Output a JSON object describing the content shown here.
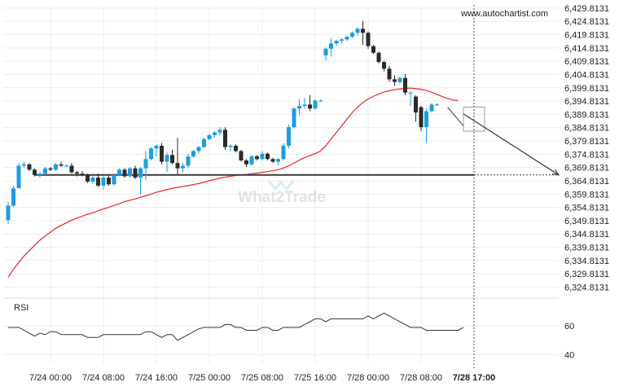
{
  "watermark": {
    "site": "www.autochartist.com",
    "brand": "What2Trade"
  },
  "colors": {
    "bull": "#1a9ee0",
    "bear": "#2b2b2b",
    "ma": "#e8242c",
    "support": "#3a3a3a",
    "arrow": "#3a3a3a",
    "rsi": "#333333",
    "grid": "#ececec",
    "axis_text": "#222222",
    "projection_fill": "#ffffff"
  },
  "chart_data": [
    {
      "type": "candlestick",
      "title": "",
      "ylim": [
        6322.5,
        6431.0
      ],
      "y_ticks": [
        6429.8131,
        6424.8131,
        6419.8131,
        6414.8131,
        6409.8131,
        6404.8131,
        6399.8131,
        6394.8131,
        6389.8131,
        6384.8131,
        6379.8131,
        6374.8131,
        6369.8131,
        6364.8131,
        6359.8131,
        6354.8131,
        6349.8131,
        6344.8131,
        6339.8131,
        6334.8131,
        6329.8131,
        6324.8131
      ],
      "y_tick_labels": [
        "6,429.8131",
        "6,424.8131",
        "6,419.8131",
        "6,414.8131",
        "6,409.8131",
        "6,404.8131",
        "6,399.8131",
        "6,394.8131",
        "6,389.8131",
        "6,384.8131",
        "6,379.8131",
        "6,374.8131",
        "6,369.8131",
        "6,364.8131",
        "6,359.8131",
        "6,354.8131",
        "6,349.8131",
        "6,344.8131",
        "6,339.8131",
        "6,334.8131",
        "6,329.8131",
        "6,324.8131"
      ],
      "x_tick_labels": [
        "7/24 00:00",
        "7/24 08:00",
        "7/24 16:00",
        "7/25 00:00",
        "7/25 08:00",
        "7/25 16:00",
        "7/28 00:00",
        "7/28 08:00",
        "7/28 17:00"
      ],
      "x_tick_bar_index": [
        8,
        18,
        28,
        38,
        48,
        58,
        68,
        78,
        88
      ],
      "now_bar_index": 88,
      "candles": [
        {
          "o": 6350.0,
          "h": 6357.0,
          "l": 6348.5,
          "c": 6355.5
        },
        {
          "o": 6355.5,
          "h": 6363.0,
          "l": 6355.0,
          "c": 6362.0
        },
        {
          "o": 6362.0,
          "h": 6371.5,
          "l": 6362.0,
          "c": 6370.5
        },
        {
          "o": 6370.5,
          "h": 6372.0,
          "l": 6369.5,
          "c": 6371.0
        },
        {
          "o": 6371.0,
          "h": 6371.5,
          "l": 6368.5,
          "c": 6369.0
        },
        {
          "o": 6369.0,
          "h": 6369.5,
          "l": 6366.5,
          "c": 6367.0
        },
        {
          "o": 6367.0,
          "h": 6368.0,
          "l": 6366.0,
          "c": 6367.5
        },
        {
          "o": 6367.5,
          "h": 6370.0,
          "l": 6367.0,
          "c": 6369.5
        },
        {
          "o": 6369.5,
          "h": 6370.0,
          "l": 6368.5,
          "c": 6369.0
        },
        {
          "o": 6369.0,
          "h": 6371.5,
          "l": 6368.5,
          "c": 6371.0
        },
        {
          "o": 6371.0,
          "h": 6372.0,
          "l": 6370.0,
          "c": 6370.5
        },
        {
          "o": 6370.5,
          "h": 6371.0,
          "l": 6370.0,
          "c": 6370.5
        },
        {
          "o": 6370.5,
          "h": 6371.5,
          "l": 6367.5,
          "c": 6368.0
        },
        {
          "o": 6368.0,
          "h": 6368.5,
          "l": 6366.5,
          "c": 6367.5
        },
        {
          "o": 6367.5,
          "h": 6368.5,
          "l": 6366.5,
          "c": 6367.0
        },
        {
          "o": 6367.0,
          "h": 6367.5,
          "l": 6364.0,
          "c": 6364.5
        },
        {
          "o": 6364.5,
          "h": 6366.5,
          "l": 6363.5,
          "c": 6366.0
        },
        {
          "o": 6366.0,
          "h": 6367.5,
          "l": 6362.5,
          "c": 6363.0
        },
        {
          "o": 6363.0,
          "h": 6366.5,
          "l": 6361.5,
          "c": 6366.0
        },
        {
          "o": 6366.0,
          "h": 6367.0,
          "l": 6363.0,
          "c": 6363.5
        },
        {
          "o": 6363.5,
          "h": 6367.5,
          "l": 6363.0,
          "c": 6367.0
        },
        {
          "o": 6367.0,
          "h": 6369.5,
          "l": 6366.5,
          "c": 6369.0
        },
        {
          "o": 6369.0,
          "h": 6369.5,
          "l": 6366.0,
          "c": 6366.5
        },
        {
          "o": 6366.5,
          "h": 6370.0,
          "l": 6366.0,
          "c": 6369.5
        },
        {
          "o": 6369.5,
          "h": 6370.5,
          "l": 6365.5,
          "c": 6366.0
        },
        {
          "o": 6366.0,
          "h": 6370.0,
          "l": 6359.5,
          "c": 6369.5
        },
        {
          "o": 6369.5,
          "h": 6376.0,
          "l": 6365.0,
          "c": 6373.0
        },
        {
          "o": 6373.0,
          "h": 6377.5,
          "l": 6372.5,
          "c": 6377.0
        },
        {
          "o": 6377.0,
          "h": 6378.5,
          "l": 6374.0,
          "c": 6378.0
        },
        {
          "o": 6378.0,
          "h": 6379.0,
          "l": 6371.0,
          "c": 6372.0
        },
        {
          "o": 6372.0,
          "h": 6375.5,
          "l": 6368.0,
          "c": 6374.5
        },
        {
          "o": 6374.5,
          "h": 6376.5,
          "l": 6371.0,
          "c": 6371.5
        },
        {
          "o": 6371.5,
          "h": 6381.0,
          "l": 6367.0,
          "c": 6369.5
        },
        {
          "o": 6369.5,
          "h": 6371.5,
          "l": 6368.0,
          "c": 6370.5
        },
        {
          "o": 6370.5,
          "h": 6375.0,
          "l": 6369.5,
          "c": 6374.0
        },
        {
          "o": 6374.0,
          "h": 6376.5,
          "l": 6373.5,
          "c": 6376.0
        },
        {
          "o": 6376.0,
          "h": 6378.0,
          "l": 6375.0,
          "c": 6377.5
        },
        {
          "o": 6377.5,
          "h": 6381.0,
          "l": 6377.0,
          "c": 6380.5
        },
        {
          "o": 6380.5,
          "h": 6382.5,
          "l": 6380.0,
          "c": 6382.0
        },
        {
          "o": 6382.0,
          "h": 6383.5,
          "l": 6381.0,
          "c": 6383.0
        },
        {
          "o": 6383.0,
          "h": 6385.0,
          "l": 6382.0,
          "c": 6384.0
        },
        {
          "o": 6384.0,
          "h": 6385.0,
          "l": 6376.5,
          "c": 6377.5
        },
        {
          "o": 6377.5,
          "h": 6378.5,
          "l": 6376.0,
          "c": 6378.0
        },
        {
          "o": 6378.0,
          "h": 6378.5,
          "l": 6375.5,
          "c": 6376.0
        },
        {
          "o": 6376.0,
          "h": 6376.5,
          "l": 6372.0,
          "c": 6372.5
        },
        {
          "o": 6372.5,
          "h": 6373.0,
          "l": 6370.0,
          "c": 6371.0
        },
        {
          "o": 6371.0,
          "h": 6374.5,
          "l": 6370.5,
          "c": 6374.0
        },
        {
          "o": 6374.0,
          "h": 6374.5,
          "l": 6372.5,
          "c": 6373.0
        },
        {
          "o": 6373.0,
          "h": 6376.0,
          "l": 6372.5,
          "c": 6375.0
        },
        {
          "o": 6375.0,
          "h": 6375.5,
          "l": 6372.5,
          "c": 6373.0
        },
        {
          "o": 6373.0,
          "h": 6373.5,
          "l": 6371.5,
          "c": 6372.0
        },
        {
          "o": 6372.0,
          "h": 6373.5,
          "l": 6370.5,
          "c": 6373.0
        },
        {
          "o": 6373.0,
          "h": 6379.0,
          "l": 6372.5,
          "c": 6378.0
        },
        {
          "o": 6378.0,
          "h": 6386.0,
          "l": 6377.0,
          "c": 6385.0
        },
        {
          "o": 6385.0,
          "h": 6392.5,
          "l": 6384.5,
          "c": 6392.0
        },
        {
          "o": 6392.0,
          "h": 6395.5,
          "l": 6389.5,
          "c": 6393.0
        },
        {
          "o": 6393.0,
          "h": 6396.0,
          "l": 6392.0,
          "c": 6393.5
        },
        {
          "o": 6393.5,
          "h": 6397.0,
          "l": 6391.0,
          "c": 6392.0
        },
        {
          "o": 6392.0,
          "h": 6395.5,
          "l": 6391.5,
          "c": 6395.0
        },
        {
          "o": 6395.0,
          "h": 6395.5,
          "l": 6394.5,
          "c": 6395.0
        },
        {
          "o": 6412.0,
          "h": 6415.0,
          "l": 6410.0,
          "c": 6414.5
        },
        {
          "o": 6414.5,
          "h": 6418.5,
          "l": 6411.5,
          "c": 6416.5
        },
        {
          "o": 6416.5,
          "h": 6418.0,
          "l": 6415.5,
          "c": 6417.5
        },
        {
          "o": 6417.5,
          "h": 6418.5,
          "l": 6416.5,
          "c": 6418.0
        },
        {
          "o": 6418.0,
          "h": 6419.5,
          "l": 6417.5,
          "c": 6419.0
        },
        {
          "o": 6419.0,
          "h": 6421.0,
          "l": 6418.5,
          "c": 6420.5
        },
        {
          "o": 6420.5,
          "h": 6422.5,
          "l": 6419.5,
          "c": 6422.0
        },
        {
          "o": 6422.0,
          "h": 6425.0,
          "l": 6416.0,
          "c": 6420.5
        },
        {
          "o": 6420.5,
          "h": 6421.0,
          "l": 6414.5,
          "c": 6415.5
        },
        {
          "o": 6415.5,
          "h": 6416.0,
          "l": 6412.5,
          "c": 6413.0
        },
        {
          "o": 6413.0,
          "h": 6413.5,
          "l": 6409.0,
          "c": 6409.5
        },
        {
          "o": 6409.5,
          "h": 6410.0,
          "l": 6406.0,
          "c": 6407.0
        },
        {
          "o": 6407.0,
          "h": 6408.0,
          "l": 6402.0,
          "c": 6403.0
        },
        {
          "o": 6403.0,
          "h": 6404.5,
          "l": 6400.5,
          "c": 6402.0
        },
        {
          "o": 6402.0,
          "h": 6404.0,
          "l": 6401.5,
          "c": 6403.5
        },
        {
          "o": 6403.5,
          "h": 6405.0,
          "l": 6397.0,
          "c": 6398.0
        },
        {
          "o": 6398.0,
          "h": 6398.5,
          "l": 6393.0,
          "c": 6398.0
        },
        {
          "o": 6396.5,
          "h": 6397.0,
          "l": 6387.0,
          "c": 6390.5
        },
        {
          "o": 6392.5,
          "h": 6393.0,
          "l": 6383.5,
          "c": 6385.0
        },
        {
          "o": 6385.0,
          "h": 6392.0,
          "l": 6379.0,
          "c": 6391.0
        },
        {
          "o": 6391.0,
          "h": 6394.0,
          "l": 6390.5,
          "c": 6393.5
        },
        {
          "o": 6393.5,
          "h": 6394.0,
          "l": 6393.0,
          "c": 6393.5
        }
      ],
      "candle_start_index": 0,
      "moving_average": [
        6328.5,
        6331.5,
        6334.0,
        6336.5,
        6338.5,
        6340.5,
        6342.5,
        6344.0,
        6345.5,
        6347.0,
        6348.0,
        6349.0,
        6350.0,
        6350.8,
        6351.5,
        6352.2,
        6352.8,
        6353.5,
        6354.2,
        6354.8,
        6355.5,
        6356.2,
        6357.0,
        6357.5,
        6358.0,
        6358.6,
        6359.2,
        6359.8,
        6360.5,
        6361.0,
        6361.5,
        6362.0,
        6362.3,
        6362.7,
        6363.0,
        6363.4,
        6363.8,
        6364.3,
        6364.8,
        6365.3,
        6365.8,
        6366.2,
        6366.5,
        6366.8,
        6367.0,
        6367.2,
        6367.5,
        6367.7,
        6368.0,
        6368.3,
        6368.6,
        6369.0,
        6369.6,
        6370.4,
        6371.5,
        6372.6,
        6373.5,
        6374.3,
        6375.0,
        6376.0,
        6378.0,
        6380.5,
        6383.0,
        6385.5,
        6388.0,
        6390.5,
        6392.5,
        6394.3,
        6395.6,
        6396.6,
        6397.5,
        6398.2,
        6398.7,
        6399.1,
        6399.4,
        6399.6,
        6399.7,
        6399.5,
        6399.2,
        6398.8,
        6398.1,
        6397.3,
        6396.5,
        6395.8,
        6395.2,
        6395.0
      ],
      "ma_start_index": 0,
      "support_level": 6367.0,
      "support_start_bar": 5,
      "pattern_lines": [
        {
          "from": [
            83,
            6392.5
          ],
          "to": [
            86,
            6385.5
          ]
        }
      ],
      "projection": {
        "from": [
          86,
          6390.0
        ],
        "to": [
          104,
          6367.0
        ],
        "box_from_bar": 86,
        "box_to_bar": 90,
        "box_top": 6392.5,
        "box_bottom": 6383.5
      }
    },
    {
      "type": "line",
      "name": "RSI",
      "title": "RSI",
      "ylim": [
        34,
        76
      ],
      "y_ticks": [
        60,
        40
      ],
      "y_tick_labels": [
        "60",
        "40"
      ],
      "values": [
        59,
        59,
        59,
        57,
        55,
        53,
        55,
        54,
        56,
        56,
        54,
        54,
        54,
        54,
        54,
        52,
        52,
        52,
        54,
        54,
        54,
        54,
        54,
        54,
        54,
        54,
        56,
        56,
        54,
        52,
        54,
        54,
        50,
        52,
        54,
        56,
        58,
        59,
        59,
        59,
        59,
        61,
        61,
        59,
        59,
        57,
        57,
        57,
        59,
        59,
        57,
        57,
        59,
        59,
        59,
        59,
        61,
        63,
        65,
        65,
        63,
        65,
        65,
        65,
        65,
        65,
        65,
        65,
        67,
        65,
        67,
        69,
        67,
        65,
        63,
        61,
        59,
        59,
        59,
        57,
        57,
        57,
        57,
        57,
        57,
        57,
        59
      ]
    }
  ]
}
